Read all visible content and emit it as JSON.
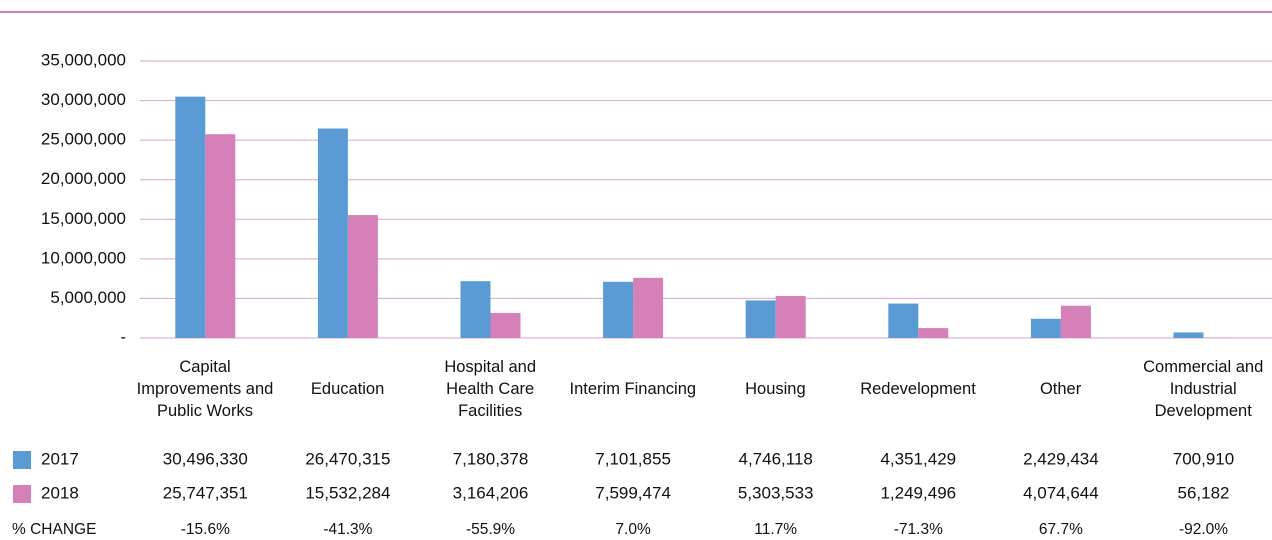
{
  "chart_data": {
    "type": "bar",
    "categories": [
      "Capital Improvements and Public Works",
      "Education",
      "Hospital and Health Care Facilities",
      "Interim Financing",
      "Housing",
      "Redevelopment",
      "Other",
      "Commercial and Industrial Development"
    ],
    "series": [
      {
        "name": "2017",
        "color": "#5b9bd5",
        "values": [
          30496330,
          26470315,
          7180378,
          7101855,
          4746118,
          4351429,
          2429434,
          700910
        ],
        "value_labels": [
          "30,496,330",
          "26,470,315",
          "7,180,378",
          "7,101,855",
          "4,746,118",
          "4,351,429",
          "2,429,434",
          "700,910"
        ]
      },
      {
        "name": "2018",
        "color": "#d580b8",
        "values": [
          25747351,
          15532284,
          3164206,
          7599474,
          5303533,
          1249496,
          4074644,
          56182
        ],
        "value_labels": [
          "25,747,351",
          "15,532,284",
          "3,164,206",
          "7,599,474",
          "5,303,533",
          "1,249,496",
          "4,074,644",
          "56,182"
        ]
      }
    ],
    "change": {
      "name": "% CHANGE",
      "values": [
        -15.6,
        -41.3,
        -55.9,
        7.0,
        11.7,
        -71.3,
        67.7,
        -92.0
      ],
      "value_labels": [
        "-15.6%",
        "-41.3%",
        "-55.9%",
        "7.0%",
        "11.7%",
        "-71.3%",
        "67.7%",
        "-92.0%"
      ]
    },
    "ylim": [
      0,
      35000000
    ],
    "yticks": [
      {
        "value": 0,
        "label": "-"
      },
      {
        "value": 5000000,
        "label": "5,000,000"
      },
      {
        "value": 10000000,
        "label": "10,000,000"
      },
      {
        "value": 15000000,
        "label": "15,000,000"
      },
      {
        "value": 20000000,
        "label": "20,000,000"
      },
      {
        "value": 25000000,
        "label": "25,000,000"
      },
      {
        "value": 30000000,
        "label": "30,000,000"
      },
      {
        "value": 35000000,
        "label": "35,000,000"
      }
    ],
    "grid": true
  }
}
